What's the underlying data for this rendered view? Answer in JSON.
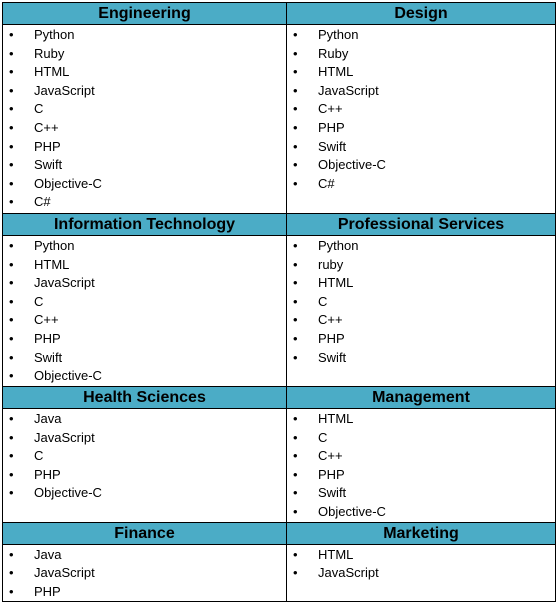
{
  "rows": [
    {
      "left": {
        "title": "Engineering",
        "items": [
          "Python",
          "Ruby",
          "HTML",
          "JavaScript",
          "C",
          "C++",
          "PHP",
          "Swift",
          "Objective-C",
          "C#"
        ]
      },
      "right": {
        "title": "Design",
        "items": [
          "Python",
          "Ruby",
          "HTML",
          "JavaScript",
          "C++",
          "PHP",
          "Swift",
          "Objective-C",
          "C#"
        ]
      }
    },
    {
      "left": {
        "title": "Information Technology",
        "items": [
          "Python",
          "HTML",
          "JavaScript",
          "C",
          "C++",
          "PHP",
          "Swift",
          "Objective-C"
        ]
      },
      "right": {
        "title": "Professional Services",
        "items": [
          "Python",
          "ruby",
          "HTML",
          "C",
          "C++",
          "PHP",
          "Swift"
        ]
      }
    },
    {
      "left": {
        "title": "Health Sciences",
        "items": [
          "Java",
          "JavaScript",
          "C",
          "PHP",
          "Objective-C"
        ]
      },
      "right": {
        "title": "Management",
        "items": [
          "HTML",
          "C",
          "C++",
          "PHP",
          "Swift",
          "Objective-C"
        ]
      }
    },
    {
      "left": {
        "title": "Finance",
        "items": [
          "Java",
          "JavaScript",
          "PHP"
        ]
      },
      "right": {
        "title": "Marketing",
        "items": [
          "HTML",
          "JavaScript"
        ]
      }
    }
  ],
  "colors": {
    "header_fill": "#4bacc6",
    "border": "#000000"
  }
}
